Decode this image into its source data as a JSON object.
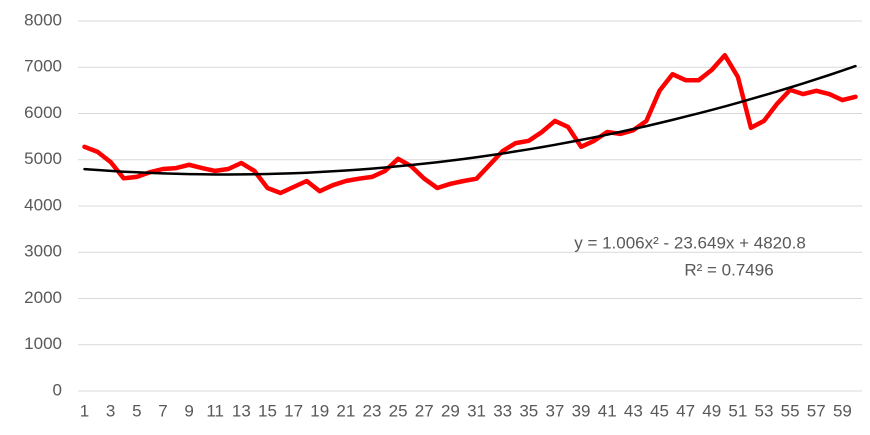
{
  "chart_data": {
    "type": "line",
    "categories": [
      1,
      null,
      3,
      null,
      5,
      null,
      7,
      null,
      9,
      null,
      11,
      null,
      13,
      null,
      15,
      null,
      17,
      null,
      19,
      null,
      21,
      null,
      23,
      null,
      25,
      null,
      27,
      null,
      29,
      null,
      31,
      null,
      33,
      null,
      35,
      null,
      37,
      null,
      39,
      null,
      41,
      null,
      43,
      null,
      45,
      null,
      47,
      null,
      49,
      null,
      51,
      null,
      53,
      null,
      55,
      null,
      57,
      null,
      59,
      null
    ],
    "series": [
      {
        "color": "#ff0000",
        "values": [
          5280,
          5170,
          4950,
          4600,
          4630,
          4730,
          4800,
          4820,
          4890,
          4820,
          4760,
          4800,
          4930,
          4760,
          4390,
          4280,
          4410,
          4540,
          4320,
          4450,
          4540,
          4590,
          4630,
          4760,
          5020,
          4860,
          4590,
          4390,
          4480,
          4540,
          4590,
          4890,
          5190,
          5360,
          5410,
          5600,
          5840,
          5710,
          5280,
          5410,
          5600,
          5560,
          5640,
          5840,
          6490,
          6850,
          6720,
          6720,
          6940,
          7260,
          6790,
          5690,
          5840,
          6210,
          6510,
          6420,
          6490,
          6420,
          6290,
          6360
        ]
      },
      {
        "color": "#000000",
        "values": [
          4798,
          4778,
          4759,
          4742,
          4728,
          4715,
          4705,
          4696,
          4689,
          4685,
          4682,
          4682,
          4683,
          4687,
          4692,
          4700,
          4710,
          4721,
          4735,
          4750,
          4768,
          4787,
          4809,
          4833,
          4858,
          4886,
          4916,
          4947,
          4981,
          5017,
          5054,
          5094,
          5136,
          5180,
          5225,
          5273,
          5323,
          5375,
          5429,
          5484,
          5542,
          5602,
          5664,
          5728,
          5794,
          5862,
          5932,
          6004,
          6077,
          6153,
          6231,
          6311,
          6393,
          6477,
          6563,
          6651,
          6741,
          6833,
          6927,
          7024
        ]
      }
    ],
    "annotations": [
      "y = 1.006x² - 23.649x + 4820.8",
      "R² = 0.7496"
    ],
    "ylim": [
      0,
      8000
    ],
    "yticks": [
      0,
      1000,
      2000,
      3000,
      4000,
      5000,
      6000,
      7000,
      8000
    ],
    "grid": true
  }
}
